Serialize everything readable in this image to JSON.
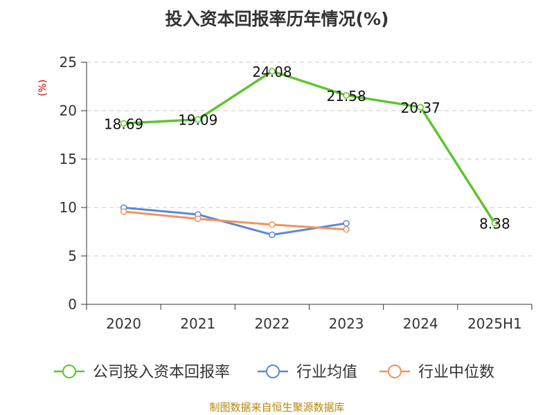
{
  "chart_data": {
    "type": "line",
    "title": "投入资本回报率历年情况(%)",
    "ylabel": "(%)",
    "categories": [
      "2020",
      "2021",
      "2022",
      "2023",
      "2024",
      "2025H1"
    ],
    "ylim": [
      0,
      25
    ],
    "yticks": [
      "0",
      "5",
      "10",
      "15",
      "20",
      "25"
    ],
    "grid": true,
    "legend_position": "bottom",
    "series": [
      {
        "name": "公司投入资本回报率",
        "color": "#5ec42f",
        "values": [
          18.69,
          19.09,
          24.08,
          21.58,
          20.37,
          8.38
        ],
        "labels": [
          "18.69",
          "19.09",
          "24.08",
          "21.58",
          "20.37",
          "8.38"
        ]
      },
      {
        "name": "行业均值",
        "color": "#5b86d9",
        "values": [
          9.98,
          9.28,
          7.18,
          8.37,
          null,
          null
        ]
      },
      {
        "name": "行业中位数",
        "color": "#f4925c",
        "values": [
          9.58,
          8.83,
          8.23,
          7.73,
          null,
          null
        ]
      }
    ]
  },
  "source": "制图数据来自恒生聚源数据库"
}
